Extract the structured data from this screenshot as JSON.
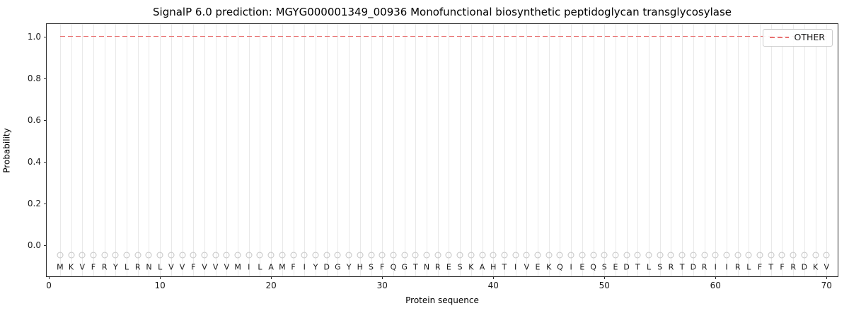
{
  "chart_data": {
    "type": "line",
    "title": "SignalP 6.0 prediction: MGYG000001349_00936 Monofunctional biosynthetic peptidoglycan transglycosylase",
    "xlabel": "Protein sequence",
    "ylabel": "Probability",
    "xlim": [
      -0.2,
      71
    ],
    "ylim": [
      -0.15,
      1.06
    ],
    "xticks": [
      0,
      10,
      20,
      30,
      40,
      50,
      60,
      70
    ],
    "xtick_labels": [
      "0",
      "10",
      "20",
      "30",
      "40",
      "50",
      "60",
      "70"
    ],
    "yticks": [
      0.0,
      0.2,
      0.4,
      0.6,
      0.8,
      1.0
    ],
    "ytick_labels": [
      "0.0",
      "0.2",
      "0.4",
      "0.6",
      "0.8",
      "1.0"
    ],
    "grid": "vertical-per-residue",
    "grid_color": "#e9e9e9",
    "legend_position": "upper right",
    "series": [
      {
        "name": "OTHER",
        "color": "#e87272",
        "style": "dashed",
        "x_start": 1,
        "x_end": 70,
        "y_value": 1.0
      }
    ],
    "sequence": "MKVFRYLRNLVVFVVVMILAMFIYDGYHSFQGTNRESKAHTIVEKQIEQSEDTLSRTDRIIRLFTFRDKV",
    "sequence_length": 70,
    "marker_y": -0.05,
    "letter_y": -0.105,
    "marker_color": "#c4c4c4"
  }
}
